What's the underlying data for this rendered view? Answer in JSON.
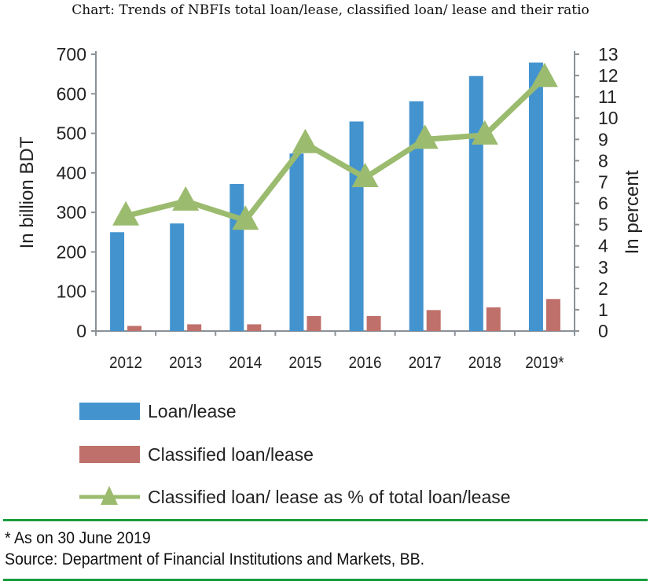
{
  "chart_data": {
    "type": "bar",
    "title": "Chart: Trends of NBFIs total loan/lease, classified loan/ lease and their ratio",
    "categories": [
      "2012",
      "2013",
      "2014",
      "2015",
      "2016",
      "2017",
      "2018",
      "2019*"
    ],
    "series": [
      {
        "name": "Loan/lease",
        "axis": "left",
        "kind": "bar",
        "color": "#4393cf",
        "values": [
          250,
          272,
          372,
          449,
          530,
          581,
          645,
          679
        ]
      },
      {
        "name": "Classified loan/lease",
        "axis": "left",
        "kind": "bar",
        "color": "#c0706a",
        "values": [
          13,
          17,
          17,
          38,
          38,
          53,
          60,
          81
        ]
      },
      {
        "name": "Classified loan/ lease as % of total loan/lease",
        "axis": "right",
        "kind": "line",
        "marker": "triangle",
        "color": "#9bbb6e",
        "values": [
          5.4,
          6.1,
          5.2,
          8.8,
          7.2,
          9.0,
          9.2,
          11.9
        ]
      }
    ],
    "ylabel": "In billion BDT",
    "ylim": [
      0,
      700
    ],
    "yticks": [
      0,
      100,
      200,
      300,
      400,
      500,
      600,
      700
    ],
    "y2label": "In percent",
    "y2lim": [
      0,
      13
    ],
    "y2ticks": [
      0,
      1,
      2,
      3,
      4,
      5,
      6,
      7,
      8,
      9,
      10,
      11,
      12,
      13
    ],
    "legend": "bottom",
    "grid": false
  },
  "footnote": "* As on 30 June 2019",
  "source": "Source: Department of Financial Institutions and Markets, BB."
}
